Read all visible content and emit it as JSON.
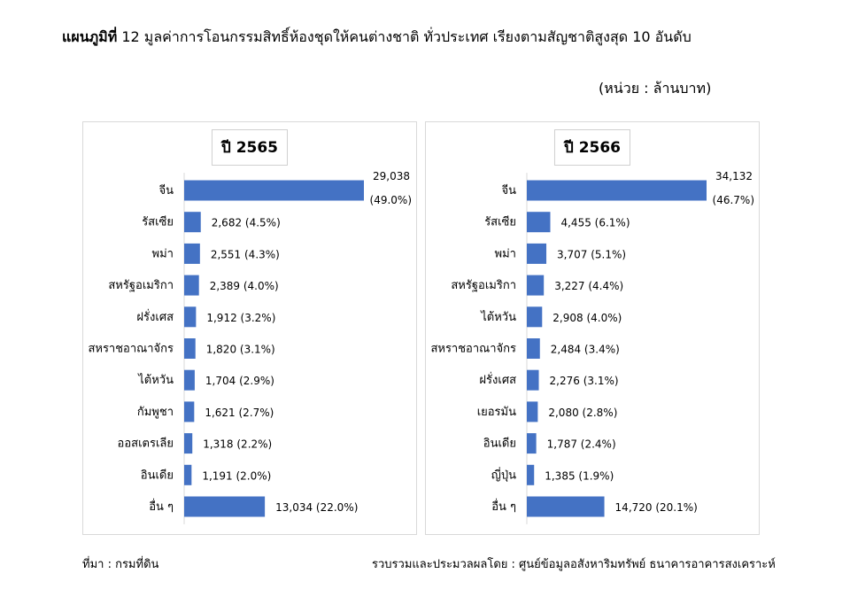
{
  "title": {
    "bold": "แผนภูมิที่",
    "text": "12 มูลค่าการโอนกรรมสิทธิ์ห้องชุดให้คนต่างชาติ ทั่วประเทศ  เรียงตามสัญชาติสูงสุด 10 อันดับ"
  },
  "unit": "(หน่วย : ล้านบาท)",
  "footer": {
    "source": "ที่มา : กรมที่ดิน",
    "compiled": "รวบรวมและประมวลผลโดย : ศูนย์ข้อมูลอสังหาริมทรัพย์ ธนาคารอาคารสงเคราะห์"
  },
  "colors": {
    "bar": "#4472c4",
    "axis": "#d9d9d9"
  },
  "chart_data": [
    {
      "type": "bar",
      "orientation": "horizontal",
      "title": "ปี 2565",
      "categories": [
        "จีน",
        "รัสเซีย",
        "พม่า",
        "สหรัฐอเมริกา",
        "ฝรั่งเศส",
        "สหราชอาณาจักร",
        "ไต้หวัน",
        "กัมพูชา",
        "ออสเตรเลีย",
        "อินเดีย",
        "อื่น ๆ"
      ],
      "values": [
        29038,
        2682,
        2551,
        2389,
        1912,
        1820,
        1704,
        1621,
        1318,
        1191,
        13034
      ],
      "value_labels": [
        "29,038",
        "2,682",
        "2,551",
        "2,389",
        "1,912",
        "1,820",
        "1,704",
        "1,621",
        "1,318",
        "1,191",
        "13,034"
      ],
      "percent_labels": [
        "(49.0%)",
        "(4.5%)",
        "(4.3%)",
        "(4.0%)",
        "(3.2%)",
        "(3.1%)",
        "(2.9%)",
        "(2.7%)",
        "(2.2%)",
        "(2.0%)",
        "(22.0%)"
      ],
      "xlim": [
        0,
        29038
      ]
    },
    {
      "type": "bar",
      "orientation": "horizontal",
      "title": "ปี 2566",
      "categories": [
        "จีน",
        "รัสเซีย",
        "พม่า",
        "สหรัฐอเมริกา",
        "ไต้หวัน",
        "สหราชอาณาจักร",
        "ฝรั่งเศส",
        "เยอรมัน",
        "อินเดีย",
        "ญี่ปุ่น",
        "อื่น ๆ"
      ],
      "values": [
        34132,
        4455,
        3707,
        3227,
        2908,
        2484,
        2276,
        2080,
        1787,
        1385,
        14720
      ],
      "value_labels": [
        "34,132",
        "4,455",
        "3,707",
        "3,227",
        "2,908",
        "2,484",
        "2,276",
        "2,080",
        "1,787",
        "1,385",
        "14,720"
      ],
      "percent_labels": [
        "(46.7%)",
        "(6.1%)",
        "(5.1%)",
        "(4.4%)",
        "(4.0%)",
        "(3.4%)",
        "(3.1%)",
        "(2.8%)",
        "(2.4%)",
        "(1.9%)",
        "(20.1%)"
      ],
      "xlim": [
        0,
        34132
      ]
    }
  ]
}
